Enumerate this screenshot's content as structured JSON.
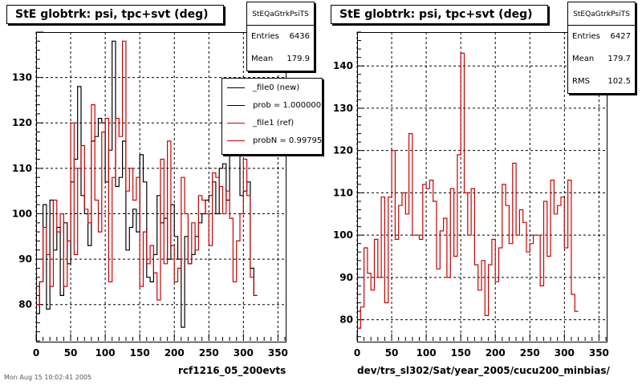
{
  "panels": [
    {
      "title": "StE globtrk: psi, tpc+svt (deg)",
      "stats": {
        "name": "StEQaGtrkPsiTS",
        "rows": [
          {
            "label": "Entries",
            "value": "6436"
          },
          {
            "label": "Mean",
            "value": "179.9"
          }
        ]
      },
      "xlabel": "rcf1216_05_200evts",
      "legend": [
        {
          "label": "_file0 (new)",
          "color": "#000000"
        },
        {
          "label": "prob = 1.000000",
          "color": "#000000"
        },
        {
          "label": "_file1 (ref)",
          "color": "#cc0000"
        },
        {
          "label": "probN = 0.997954",
          "color": "#cc0000"
        }
      ]
    },
    {
      "title": "StE globtrk: psi, tpc+svt (deg)",
      "stats": {
        "name": "StEQaGtrkPsiTS",
        "rows": [
          {
            "label": "Entries",
            "value": "6427"
          },
          {
            "label": "Mean",
            "value": "179.7"
          },
          {
            "label": "RMS",
            "value": "102.5"
          }
        ]
      },
      "xlabel": "dev/trs_sl302/Sat/year_2005/cucu200_minbias/"
    }
  ],
  "footer": "Mon Aug 15 10:02:41 2005",
  "colors": {
    "new": "#000000",
    "ref": "#cc0000",
    "grid": "#000000"
  },
  "chart_data": [
    {
      "type": "line",
      "title": "StE globtrk: psi, tpc+svt (deg)",
      "xlabel": "rcf1216_05_200evts",
      "ylabel": "",
      "xlim": [
        0,
        360
      ],
      "ylim": [
        72,
        140
      ],
      "x_ticks": [
        0,
        50,
        100,
        150,
        200,
        250,
        300,
        350
      ],
      "y_ticks": [
        80,
        90,
        100,
        110,
        120,
        130
      ],
      "grid": true,
      "bin_width": 5,
      "series": [
        {
          "name": "_file0 (new)",
          "color": "#000000",
          "values": [
            78,
            85,
            102,
            79,
            103,
            92,
            97,
            82,
            98,
            89,
            107,
            112,
            128,
            104,
            100,
            93,
            116,
            117,
            121,
            120,
            107,
            114,
            138,
            106,
            108,
            116,
            92,
            97,
            101,
            96,
            113,
            107,
            86,
            85,
            91,
            104,
            98,
            99,
            90,
            102,
            95,
            90,
            75,
            95,
            89,
            91,
            95,
            98,
            100,
            103,
            104,
            107,
            100,
            110,
            111,
            103,
            113,
            115,
            113,
            104,
            105,
            107,
            88,
            82
          ]
        },
        {
          "name": "_file1 (ref)",
          "color": "#cc0000",
          "values": [
            80,
            85,
            97,
            91,
            84,
            103,
            96,
            100,
            84,
            94,
            120,
            91,
            110,
            115,
            101,
            98,
            124,
            103,
            96,
            118,
            121,
            85,
            108,
            121,
            117,
            138,
            105,
            110,
            103,
            108,
            84,
            96,
            89,
            93,
            87,
            81,
            112,
            89,
            116,
            93,
            85,
            88,
            108,
            100,
            89,
            98,
            92,
            104,
            103,
            100,
            93,
            109,
            108,
            106,
            100,
            105,
            99,
            85,
            94,
            100,
            112,
            104,
            86,
            82
          ]
        }
      ]
    },
    {
      "type": "line",
      "title": "StE globtrk: psi, tpc+svt (deg)",
      "xlabel": "dev/trs_sl302/Sat/year_2005/cucu200_minbias/",
      "ylabel": "",
      "xlim": [
        0,
        360
      ],
      "ylim": [
        75,
        148
      ],
      "x_ticks": [
        0,
        50,
        100,
        150,
        200,
        250,
        300,
        350
      ],
      "y_ticks": [
        80,
        90,
        100,
        110,
        120,
        130,
        140
      ],
      "grid": true,
      "bin_width": 5,
      "series": [
        {
          "name": "_file1 (ref)",
          "color": "#cc0000",
          "values": [
            78,
            83,
            97,
            91,
            87,
            99,
            90,
            109,
            84,
            109,
            120,
            99,
            107,
            110,
            105,
            124,
            100,
            100,
            99,
            112,
            111,
            113,
            108,
            92,
            101,
            104,
            90,
            111,
            95,
            119,
            143,
            110,
            100,
            111,
            93,
            87,
            94,
            81,
            93,
            99,
            89,
            97,
            112,
            107,
            98,
            117,
            100,
            106,
            103,
            96,
            98,
            100,
            100,
            88,
            108,
            95,
            113,
            105,
            107,
            109,
            97,
            113,
            86,
            82
          ]
        }
      ]
    }
  ]
}
